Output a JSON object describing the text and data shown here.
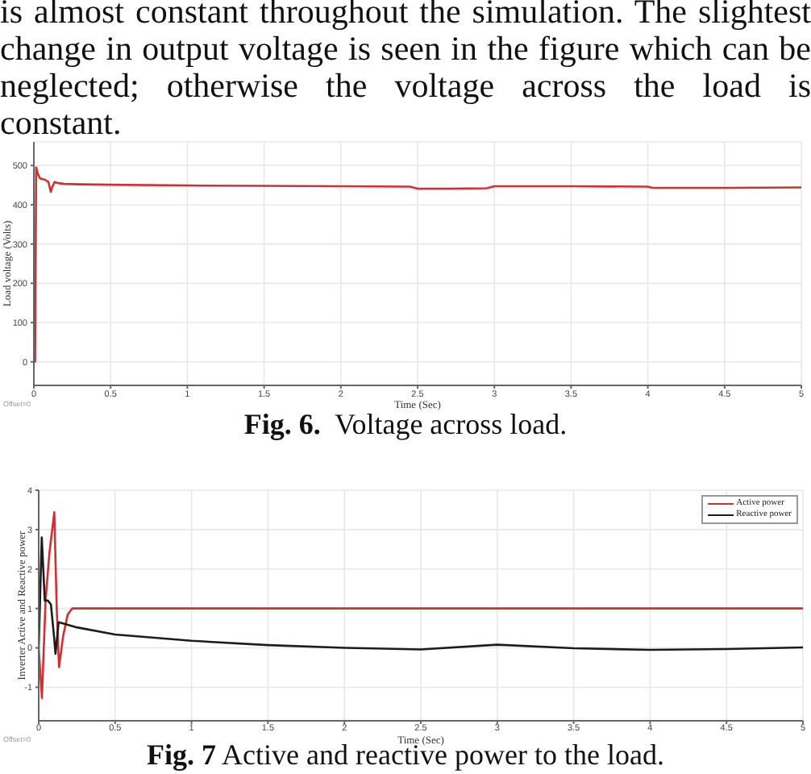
{
  "chart_data": [
    {
      "type": "line",
      "xlabel": "Time (Sec)",
      "ylabel": "Load voltage (Volts)",
      "annotations": [
        "is almost constant throughout the simulation. The slightest\nchange in output voltage is seen in the figure which can be\nneglected; otherwise the voltage across the load is\nconstant.",
        "Fig. 6.  Voltage across load.",
        "Offset=0"
      ],
      "x": [
        0,
        0.008,
        0.015,
        0.025,
        0.04,
        0.07,
        0.095,
        0.11,
        0.12,
        0.135,
        0.16,
        0.2,
        0.3,
        0.5,
        1,
        1.5,
        2,
        2.45,
        2.5,
        2.7,
        2.95,
        3,
        3.5,
        4,
        4.03,
        4.5,
        5
      ],
      "values": [
        0,
        0,
        495,
        480,
        467,
        464,
        458,
        433,
        445,
        458,
        455,
        453,
        452,
        451,
        449,
        448,
        447,
        446,
        441,
        441,
        442,
        447,
        447,
        446,
        443,
        443,
        444
      ],
      "color": "#d03030",
      "xlim": [
        0,
        5
      ],
      "ylim": [
        -60,
        560
      ],
      "xticks": [
        0,
        0.5,
        1,
        1.5,
        2,
        2.5,
        3,
        3.5,
        4,
        4.5,
        5
      ],
      "yticks": [
        0,
        100,
        200,
        300,
        400,
        500
      ],
      "grid": true
    },
    {
      "type": "line",
      "xlabel": "Time (Sec)",
      "ylabel": "Inverter Active and Reactive power",
      "annotations": [
        "Fig. 7 Active and reactive power to the load.",
        "Offset=0"
      ],
      "series": [
        {
          "name": "Active power",
          "color": "#d03030",
          "x": [
            0,
            0.021,
            0.045,
            0.07,
            0.102,
            0.118,
            0.133,
            0.16,
            0.19,
            0.22,
            0.3,
            5
          ],
          "values": [
            0,
            -1.27,
            1.2,
            2.4,
            3.44,
            1.0,
            -0.49,
            0.3,
            0.85,
            1.0,
            1.0,
            1.0
          ]
        },
        {
          "name": "Reactive power",
          "color": "#1c1c1c",
          "x": [
            0,
            0.02,
            0.04,
            0.06,
            0.08,
            0.1,
            0.11,
            0.13,
            0.15,
            0.25,
            0.5,
            1,
            1.5,
            2,
            2.5,
            3,
            3.5,
            4,
            4.5,
            5
          ],
          "values": [
            0,
            2.8,
            1.2,
            1.2,
            1.1,
            0.3,
            -0.15,
            0.65,
            0.63,
            0.52,
            0.34,
            0.18,
            0.07,
            0.0,
            -0.04,
            0.08,
            -0.01,
            -0.05,
            -0.03,
            0.01
          ]
        }
      ],
      "xlim": [
        0,
        5
      ],
      "ylim": [
        -1.85,
        4
      ],
      "xticks": [
        0,
        0.5,
        1,
        1.5,
        2,
        2.5,
        3,
        3.5,
        4,
        4.5,
        5
      ],
      "yticks": [
        -1,
        0,
        1,
        2,
        3,
        4
      ],
      "grid": true,
      "legend": "top right"
    }
  ]
}
